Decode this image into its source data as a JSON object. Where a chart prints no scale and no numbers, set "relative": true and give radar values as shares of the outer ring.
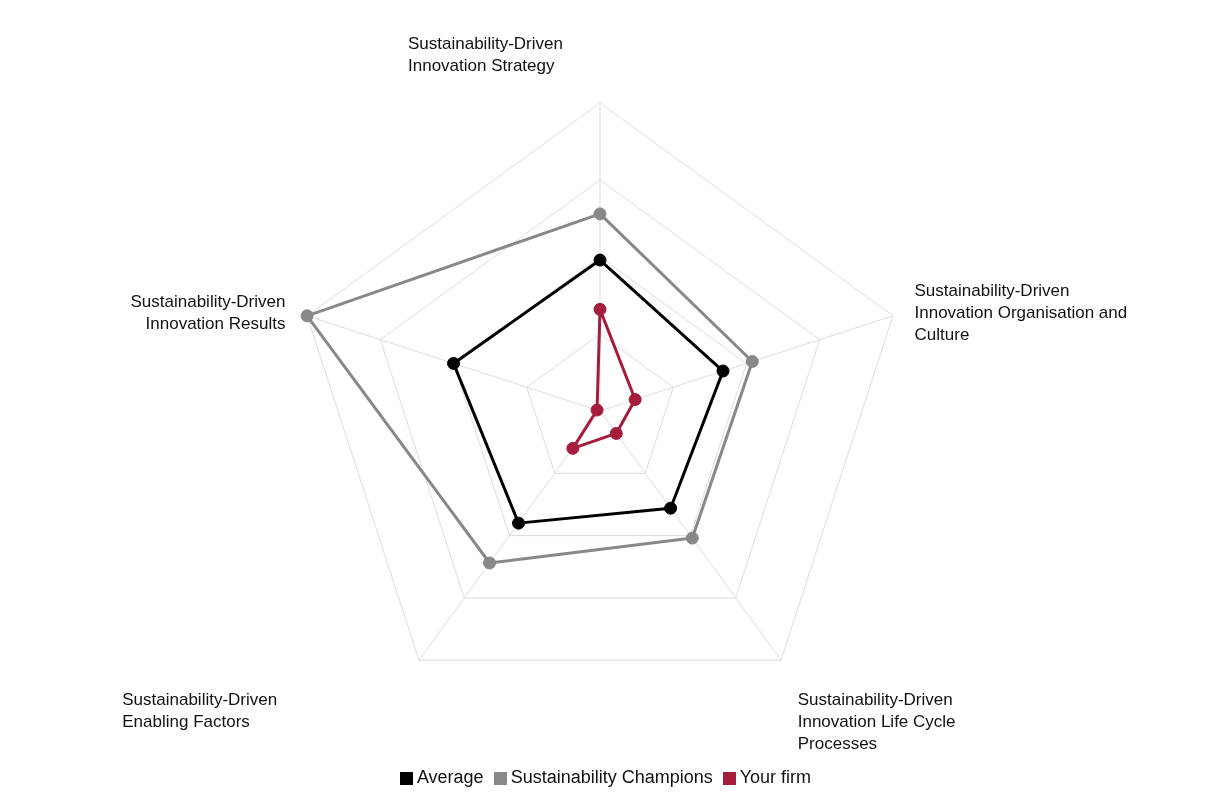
{
  "chart_data": {
    "type": "radar",
    "relative": true,
    "categories": [
      "Sustainability-Driven Innovation Strategy",
      "Sustainability-Driven Innovation Organisation and Culture",
      "Sustainability-Driven Innovation Life Cycle Processes",
      "Sustainability-Driven Enabling Factors",
      "Sustainability-Driven Innovation Results"
    ],
    "series": [
      {
        "name": "Your firm",
        "color": "#a51c3c",
        "values": [
          0.33,
          0.12,
          0.09,
          0.15,
          0.01
        ]
      },
      {
        "name": "Sustainability Champions",
        "color": "#888888",
        "values": [
          0.64,
          0.52,
          0.51,
          0.61,
          1.0
        ]
      },
      {
        "name": "Average",
        "color": "#000000",
        "values": [
          0.49,
          0.42,
          0.39,
          0.45,
          0.5
        ]
      }
    ],
    "grid": true,
    "legend": "bottom",
    "marker": "circle",
    "line_style": "solid"
  }
}
